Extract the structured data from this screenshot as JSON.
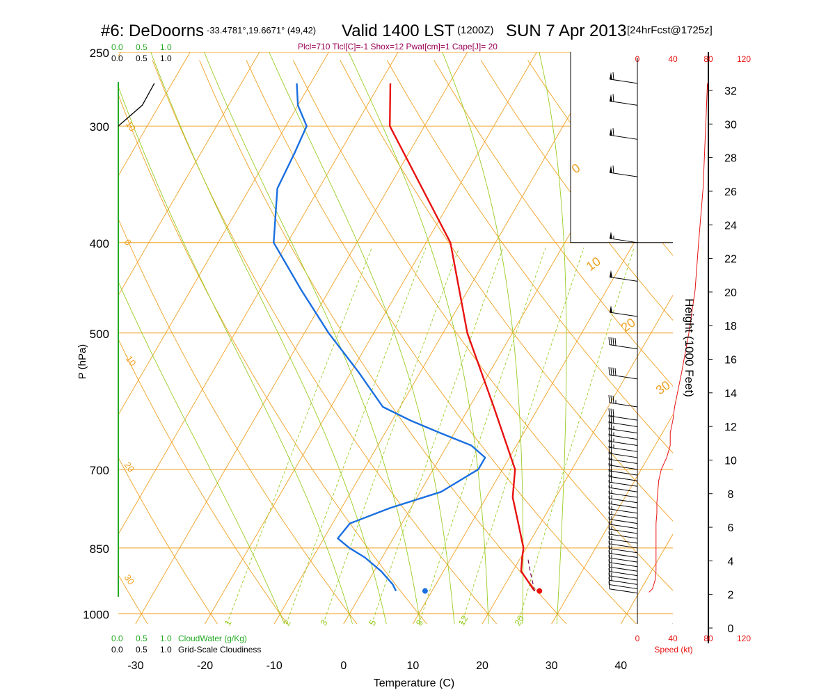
{
  "header": {
    "station": "#6: DeDoorns",
    "coords": "-33.4781°,19.6671° (49,42)",
    "valid": "Valid 1400 LST",
    "utc": "(1200Z)",
    "date": "SUN 7 Apr 2013",
    "forecast": "[24hrFcst@1725z]",
    "indices": "Plcl=710 Tlcl[C]=-1 Shox=12 Pwat[cm]=1 Cape[J]= 20"
  },
  "labels": {
    "cloud_water_scale": [
      "0.0",
      "0.5",
      "1.0"
    ],
    "cloudiness_scale": [
      "0.0",
      "0.5",
      "1.0"
    ],
    "cloud_water_legend": "CloudWater (g/Kg)",
    "cloudiness_legend": "Grid-Scale Cloudiness",
    "speed_legend": "Speed (kt)"
  },
  "colors": {
    "isobar": "#f0a020",
    "dry_adiabat": "#f0a020",
    "moist_adiabat": "#99cc22",
    "mixing_ratio": "#99cc22",
    "temperature": "#e81010",
    "dewpoint": "#1a6fe0",
    "cloud": "#22aa22",
    "speed": "#e81010",
    "indices": "#990055"
  },
  "chart_data": {
    "type": "skew-t",
    "xlabel": "Temperature (C)",
    "ylabel": "P (hPa)",
    "y2label": "Height (1000 Feet)",
    "x_ticks": [
      -30,
      -20,
      -10,
      0,
      10,
      20,
      30,
      40
    ],
    "xlim": [
      -32.5,
      47.5
    ],
    "p_ticks": [
      250,
      300,
      400,
      500,
      700,
      850,
      1000
    ],
    "plim": [
      250,
      1025
    ],
    "height_ticks": [
      0,
      2,
      4,
      6,
      8,
      10,
      12,
      14,
      16,
      18,
      20,
      22,
      24,
      26,
      28,
      30,
      32
    ],
    "speed_ticks": [
      0,
      40,
      80,
      120
    ],
    "isotherm_labels": [
      "-30",
      "-20",
      "-10",
      "0",
      "10",
      "20",
      "30",
      "40"
    ],
    "dry_adiabat_labels": [
      "10",
      "0",
      "-10",
      "20",
      "30",
      "0",
      "10",
      "20",
      "30"
    ],
    "mixing_ratio_labels": [
      "1",
      "2",
      "3",
      "5",
      "8",
      "12",
      "20"
    ],
    "temperature": {
      "p": [
        945,
        900,
        870,
        850,
        800,
        750,
        700,
        600,
        500,
        400,
        300,
        270
      ],
      "t": [
        24.8,
        21.2,
        20.2,
        19.6,
        16.8,
        13.8,
        11.8,
        3.5,
        -6.5,
        -16.5,
        -35.0,
        -38.5
      ]
    },
    "dewpoint": {
      "p": [
        945,
        930,
        900,
        870,
        850,
        830,
        800,
        770,
        740,
        700,
        680,
        660,
        640,
        620,
        600,
        550,
        500,
        450,
        400,
        350,
        320,
        300,
        285,
        270
      ],
      "td": [
        4.8,
        3.8,
        1.0,
        -2.5,
        -5.5,
        -8.0,
        -7.5,
        -3.0,
        3.0,
        6.5,
        6.5,
        3.5,
        -2.0,
        -7.5,
        -12.5,
        -19.0,
        -26.5,
        -34.0,
        -42.0,
        -46.0,
        -46.5,
        -47.0,
        -50.0,
        -52.0
      ]
    },
    "parcel_dashed": {
      "p": [
        945,
        900,
        870
      ],
      "t": [
        24.8,
        22.5,
        21.0
      ]
    },
    "surface_temperature": 25.5,
    "surface_dewpoint": 9.0,
    "surface_pressure": 945,
    "wind_barbs": {
      "p": [
        950,
        940,
        930,
        920,
        910,
        900,
        890,
        880,
        870,
        860,
        850,
        840,
        830,
        820,
        810,
        800,
        790,
        780,
        770,
        760,
        750,
        740,
        730,
        720,
        710,
        700,
        690,
        680,
        670,
        660,
        650,
        640,
        630,
        620,
        600,
        560,
        520,
        480,
        440,
        400,
        340,
        310,
        285,
        270
      ],
      "speed_kt": [
        10,
        12,
        14,
        15,
        15,
        15,
        15,
        15,
        15,
        15,
        15,
        15,
        15,
        15,
        15,
        15,
        15,
        16,
        16,
        16,
        17,
        17,
        18,
        18,
        18,
        19,
        20,
        22,
        24,
        25,
        26,
        27,
        28,
        30,
        33,
        38,
        42,
        48,
        52,
        55,
        60,
        60,
        60,
        60
      ]
    },
    "speed_profile": {
      "p": [
        948,
        940,
        920,
        900,
        880,
        860,
        840,
        820,
        800,
        780,
        760,
        740,
        720,
        700,
        680,
        660,
        640,
        620,
        600,
        550,
        500,
        450,
        400,
        350,
        300,
        270
      ],
      "speed_kt": [
        13,
        17,
        20,
        21,
        21,
        21,
        21,
        21,
        21,
        22,
        22,
        23,
        24,
        27,
        33,
        37,
        37,
        40,
        42,
        50,
        58,
        65,
        69,
        74,
        77,
        79
      ]
    },
    "cloudiness_profile": {
      "p": [
        270,
        285,
        300
      ],
      "value": [
        0.45,
        0.3,
        0.0
      ]
    },
    "tropopause_line": {
      "p": [
        400,
        620
      ],
      "t": [
        35.5,
        51.0
      ]
    }
  }
}
